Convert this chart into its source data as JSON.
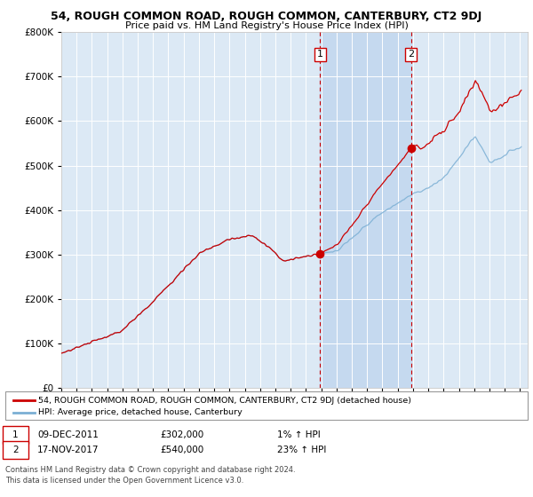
{
  "title": "54, ROUGH COMMON ROAD, ROUGH COMMON, CANTERBURY, CT2 9DJ",
  "subtitle": "Price paid vs. HM Land Registry's House Price Index (HPI)",
  "legend_line1": "54, ROUGH COMMON ROAD, ROUGH COMMON, CANTERBURY, CT2 9DJ (detached house)",
  "legend_line2": "HPI: Average price, detached house, Canterbury",
  "annotation1_label": "1",
  "annotation1_date": "09-DEC-2011",
  "annotation1_price": "£302,000",
  "annotation1_hpi": "1% ↑ HPI",
  "annotation2_label": "2",
  "annotation2_date": "17-NOV-2017",
  "annotation2_price": "£540,000",
  "annotation2_hpi": "23% ↑ HPI",
  "footnote": "Contains HM Land Registry data © Crown copyright and database right 2024.\nThis data is licensed under the Open Government Licence v3.0.",
  "background_color": "#ffffff",
  "plot_bg_color": "#dce9f5",
  "highlight_color": "#c5d9ef",
  "grid_color": "#ffffff",
  "red_line_color": "#cc0000",
  "blue_line_color": "#7bafd4",
  "annotation_vline_color": "#cc0000",
  "sale1_x": 2011.92,
  "sale1_y": 302000,
  "sale2_x": 2017.88,
  "sale2_y": 540000,
  "xmin": 1995,
  "xmax": 2025.5,
  "ymin": 0,
  "ymax": 800000,
  "yticks": [
    0,
    100000,
    200000,
    300000,
    400000,
    500000,
    600000,
    700000,
    800000
  ]
}
